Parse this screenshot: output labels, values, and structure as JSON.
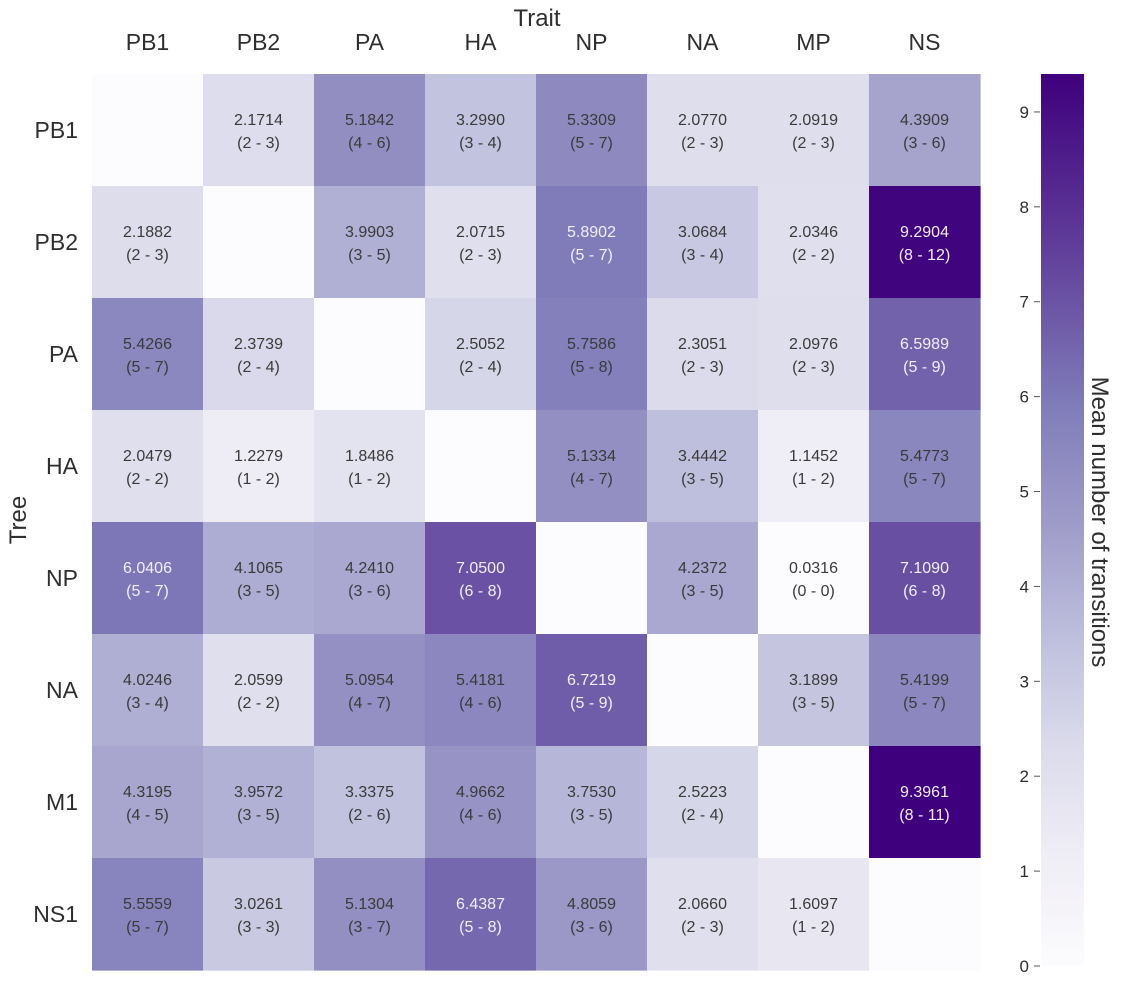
{
  "chart_data": {
    "type": "heatmap",
    "title": "",
    "xlabel": "Trait",
    "ylabel": "Tree",
    "x_position": "top",
    "columns": [
      "PB1",
      "PB2",
      "PA",
      "HA",
      "NP",
      "NA",
      "MP",
      "NS"
    ],
    "rows": [
      "PB1",
      "PB2",
      "PA",
      "HA",
      "NP",
      "NA",
      "M1",
      "NS1"
    ],
    "values": [
      [
        null,
        2.1714,
        5.1842,
        3.299,
        5.3309,
        2.077,
        2.0919,
        4.3909
      ],
      [
        2.1882,
        null,
        3.9903,
        2.0715,
        5.8902,
        3.0684,
        2.0346,
        9.2904
      ],
      [
        5.4266,
        2.3739,
        null,
        2.5052,
        5.7586,
        2.3051,
        2.0976,
        6.5989
      ],
      [
        2.0479,
        1.2279,
        1.8486,
        null,
        5.1334,
        3.4442,
        1.1452,
        5.4773
      ],
      [
        6.0406,
        4.1065,
        4.241,
        7.05,
        null,
        4.2372,
        0.0316,
        7.109
      ],
      [
        4.0246,
        2.0599,
        5.0954,
        5.4181,
        6.7219,
        null,
        3.1899,
        5.4199
      ],
      [
        4.3195,
        3.9572,
        3.3375,
        4.9662,
        3.753,
        2.5223,
        null,
        9.3961
      ],
      [
        5.5559,
        3.0261,
        5.1304,
        6.4387,
        4.8059,
        2.066,
        1.6097,
        null
      ]
    ],
    "value_labels": [
      [
        "",
        "2.1714",
        "5.1842",
        "3.2990",
        "5.3309",
        "2.0770",
        "2.0919",
        "4.3909"
      ],
      [
        "2.1882",
        "",
        "3.9903",
        "2.0715",
        "5.8902",
        "3.0684",
        "2.0346",
        "9.2904"
      ],
      [
        "5.4266",
        "2.3739",
        "",
        "2.5052",
        "5.7586",
        "2.3051",
        "2.0976",
        "6.5989"
      ],
      [
        "2.0479",
        "1.2279",
        "1.8486",
        "",
        "5.1334",
        "3.4442",
        "1.1452",
        "5.4773"
      ],
      [
        "6.0406",
        "4.1065",
        "4.2410",
        "7.0500",
        "",
        "4.2372",
        "0.0316",
        "7.1090"
      ],
      [
        "4.0246",
        "2.0599",
        "5.0954",
        "5.4181",
        "6.7219",
        "",
        "3.1899",
        "5.4199"
      ],
      [
        "4.3195",
        "3.9572",
        "3.3375",
        "4.9662",
        "3.7530",
        "2.5223",
        "",
        "9.3961"
      ],
      [
        "5.5559",
        "3.0261",
        "5.1304",
        "6.4387",
        "4.8059",
        "2.0660",
        "1.6097",
        ""
      ]
    ],
    "ranges": [
      [
        "",
        "(2 - 3)",
        "(4 - 6)",
        "(3 - 4)",
        "(5 - 7)",
        "(2 - 3)",
        "(2 - 3)",
        "(3 - 6)"
      ],
      [
        "(2 - 3)",
        "",
        "(3 - 5)",
        "(2 - 3)",
        "(5 - 7)",
        "(3 - 4)",
        "(2 - 2)",
        "(8 - 12)"
      ],
      [
        "(5 - 7)",
        "(2 - 4)",
        "",
        "(2 - 4)",
        "(5 - 8)",
        "(2 - 3)",
        "(2 - 3)",
        "(5 - 9)"
      ],
      [
        "(2 - 2)",
        "(1 - 2)",
        "(1 - 2)",
        "",
        "(4 - 7)",
        "(3 - 5)",
        "(1 - 2)",
        "(5 - 7)"
      ],
      [
        "(5 - 7)",
        "(3 - 5)",
        "(3 - 6)",
        "(6 - 8)",
        "",
        "(3 - 5)",
        "(0 - 0)",
        "(6 - 8)"
      ],
      [
        "(3 - 4)",
        "(2 - 2)",
        "(4 - 7)",
        "(4 - 6)",
        "(5 - 9)",
        "",
        "(3 - 5)",
        "(5 - 7)"
      ],
      [
        "(4 - 5)",
        "(3 - 5)",
        "(2 - 6)",
        "(4 - 6)",
        "(3 - 5)",
        "(2 - 4)",
        "",
        "(8 - 11)"
      ],
      [
        "(5 - 7)",
        "(3 - 3)",
        "(3 - 7)",
        "(5 - 8)",
        "(3 - 6)",
        "(2 - 3)",
        "(1 - 2)",
        ""
      ]
    ],
    "diagonal_value": 0,
    "colorbar": {
      "label": "Mean number of transitions",
      "min": 0,
      "max": 9.4,
      "ticks": [
        0,
        1,
        2,
        3,
        4,
        5,
        6,
        7,
        8,
        9
      ],
      "tick_labels": [
        "0",
        "1",
        "2",
        "3",
        "4",
        "5",
        "6",
        "7",
        "8",
        "9"
      ],
      "placement": "right"
    },
    "colormap": {
      "name": "Purples",
      "stops": [
        [
          0.0,
          "#fcfbfd"
        ],
        [
          0.125,
          "#efedf5"
        ],
        [
          0.25,
          "#dadaeb"
        ],
        [
          0.375,
          "#bcbddc"
        ],
        [
          0.5,
          "#9e9ac8"
        ],
        [
          0.625,
          "#807dba"
        ],
        [
          0.75,
          "#6a51a3"
        ],
        [
          0.875,
          "#54278f"
        ],
        [
          1.0,
          "#3f007d"
        ]
      ]
    },
    "text_color_dark": "#3a3a3a",
    "text_color_light": "#f2eef8",
    "grid": false
  }
}
